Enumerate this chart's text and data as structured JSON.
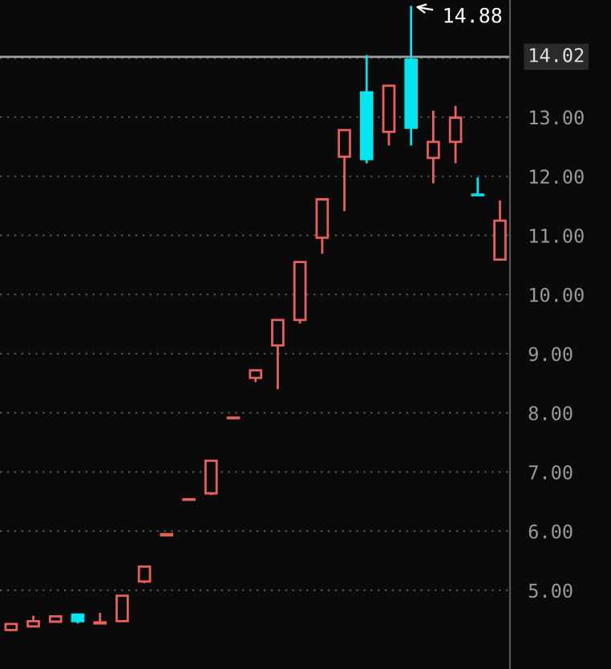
{
  "chart_data": {
    "type": "candlestick",
    "categories": [
      null,
      null,
      null,
      null,
      null,
      null,
      null,
      null,
      null,
      null,
      null,
      null,
      null,
      null,
      null,
      null,
      null,
      null,
      null,
      null,
      null,
      null,
      null
    ],
    "ohlc": [
      [
        4.33,
        4.43,
        4.31,
        4.43
      ],
      [
        4.39,
        4.57,
        4.39,
        4.48
      ],
      [
        4.47,
        4.56,
        4.47,
        4.56
      ],
      [
        4.59,
        4.59,
        4.44,
        4.48
      ],
      [
        4.44,
        4.62,
        4.44,
        4.46
      ],
      [
        4.48,
        4.91,
        4.48,
        4.91
      ],
      [
        5.15,
        5.4,
        5.12,
        5.4
      ],
      [
        5.93,
        5.95,
        5.93,
        5.95
      ],
      [
        6.53,
        6.54,
        6.53,
        6.54
      ],
      [
        6.64,
        7.19,
        6.61,
        7.19
      ],
      [
        7.91,
        7.92,
        7.91,
        7.92
      ],
      [
        8.59,
        8.72,
        8.52,
        8.72
      ],
      [
        9.14,
        9.57,
        8.4,
        9.57
      ],
      [
        9.57,
        10.55,
        9.51,
        10.55
      ],
      [
        10.96,
        11.61,
        10.69,
        11.61
      ],
      [
        12.33,
        12.78,
        11.41,
        12.78
      ],
      [
        13.42,
        14.05,
        12.22,
        12.29
      ],
      [
        12.75,
        13.53,
        12.52,
        13.53
      ],
      [
        13.97,
        14.88,
        12.52,
        12.82
      ],
      [
        12.31,
        13.11,
        11.88,
        12.58
      ],
      [
        12.58,
        13.19,
        12.22,
        12.99
      ],
      [
        11.69,
        11.98,
        11.68,
        11.68
      ],
      [
        10.59,
        11.59,
        10.59,
        11.25
      ]
    ],
    "colors": [
      "#e8605c",
      "#e8605c",
      "#e8605c",
      "#00e5f0",
      "#e8605c",
      "#e8605c",
      "#e8605c",
      "#e8605c",
      "#e8605c",
      "#e8605c",
      "#e8605c",
      "#e8605c",
      "#e8605c",
      "#e8605c",
      "#e8605c",
      "#e8605c",
      "#00e5f0",
      "#e8605c",
      "#00e5f0",
      "#e8605c",
      "#e8605c",
      "#00e5f0",
      "#e8605c"
    ],
    "ylim": [
      3.67,
      14.98
    ],
    "yticks": [
      {
        "value": 5,
        "label": "5.00"
      },
      {
        "value": 6,
        "label": "6.00"
      },
      {
        "value": 7,
        "label": "7.00"
      },
      {
        "value": 8,
        "label": "8.00"
      },
      {
        "value": 9,
        "label": "9.00"
      },
      {
        "value": 10,
        "label": "10.00"
      },
      {
        "value": 11,
        "label": "11.00"
      },
      {
        "value": 12,
        "label": "12.00"
      },
      {
        "value": 13,
        "label": "13.00"
      },
      {
        "value": 14,
        "label": null
      }
    ],
    "grid": "y",
    "ref_lines": [
      {
        "axis": "y",
        "value": 14.02,
        "label": "14.02",
        "color": "#a0a0a0"
      }
    ],
    "annotations": [
      "14.88"
    ]
  }
}
